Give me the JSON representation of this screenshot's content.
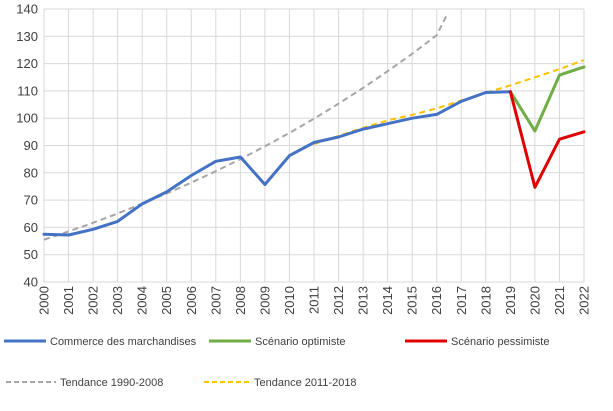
{
  "chart_data": {
    "type": "line",
    "title": "",
    "xlabel": "",
    "ylabel": "",
    "ylim": [
      40,
      140
    ],
    "yticks": [
      "40",
      "50",
      "60",
      "70",
      "80",
      "90",
      "100",
      "110",
      "120",
      "130",
      "140"
    ],
    "categories": [
      "2000",
      "2001",
      "2002",
      "2003",
      "2004",
      "2005",
      "2006",
      "2007",
      "2008",
      "2009",
      "2010",
      "2011",
      "2012",
      "2013",
      "2014",
      "2015",
      "2016",
      "2017",
      "2018",
      "2019",
      "2020",
      "2021",
      "2022"
    ],
    "series": [
      {
        "key": "commerce",
        "name": "Commerce des marchandises",
        "color": "#4472C4",
        "dashed": false,
        "points": [
          [
            0,
            57.5
          ],
          [
            1,
            57.2
          ],
          [
            2,
            59.3
          ],
          [
            3,
            62.2
          ],
          [
            4,
            68.6
          ],
          [
            5,
            73.0
          ],
          [
            6,
            79.0
          ],
          [
            7,
            84.2
          ],
          [
            8,
            85.8
          ],
          [
            9,
            75.7
          ],
          [
            10,
            86.3
          ],
          [
            11,
            91.1
          ],
          [
            12,
            93.1
          ],
          [
            13,
            96.0
          ],
          [
            14,
            98.0
          ],
          [
            15,
            100.0
          ],
          [
            16,
            101.4
          ],
          [
            17,
            106.2
          ],
          [
            18,
            109.4
          ],
          [
            19,
            109.7
          ]
        ]
      },
      {
        "key": "optimiste",
        "name": "Scénario optimiste",
        "color": "#70AD47",
        "dashed": false,
        "points": [
          [
            19,
            109.7
          ],
          [
            20,
            95.3
          ],
          [
            21,
            115.8
          ],
          [
            22,
            118.8
          ]
        ]
      },
      {
        "key": "pessimiste",
        "name": "Scénario pessimiste",
        "color": "#E00000",
        "dashed": false,
        "points": [
          [
            19,
            109.7
          ],
          [
            20,
            74.7
          ],
          [
            21,
            92.3
          ],
          [
            22,
            95.0
          ]
        ]
      },
      {
        "key": "tendance1990",
        "name": "Tendance 1990-2008",
        "color": "#A6A6A6",
        "dashed": true,
        "points": [
          [
            0,
            55.5
          ],
          [
            1,
            58.5
          ],
          [
            2,
            61.7
          ],
          [
            3,
            65.1
          ],
          [
            4,
            68.7
          ],
          [
            5,
            72.4
          ],
          [
            6,
            76.4
          ],
          [
            7,
            80.6
          ],
          [
            8,
            85.0
          ],
          [
            9,
            89.7
          ],
          [
            10,
            94.6
          ],
          [
            11,
            99.8
          ],
          [
            12,
            105.3
          ],
          [
            13,
            111.1
          ],
          [
            14,
            117.2
          ],
          [
            15,
            123.6
          ],
          [
            16,
            130.4
          ],
          [
            16.4,
            137.6
          ]
        ]
      },
      {
        "key": "tendance2011",
        "name": "Tendance 2011-2018",
        "color": "#FFC000",
        "dashed": true,
        "points": [
          [
            11,
            90.5
          ],
          [
            12,
            93.5
          ],
          [
            13,
            96.5
          ],
          [
            14,
            99.2
          ],
          [
            15,
            101.2
          ],
          [
            16,
            103.6
          ],
          [
            17,
            106.5
          ],
          [
            18,
            109.3
          ],
          [
            19,
            112.0
          ],
          [
            20,
            115.0
          ],
          [
            21,
            118.0
          ],
          [
            22,
            121.3
          ]
        ]
      }
    ],
    "legend": {
      "row1": [
        "commerce",
        "optimiste",
        "pessimiste"
      ],
      "row2": [
        "tendance1990",
        "tendance2011"
      ],
      "position": "bottom"
    },
    "grid": true
  }
}
